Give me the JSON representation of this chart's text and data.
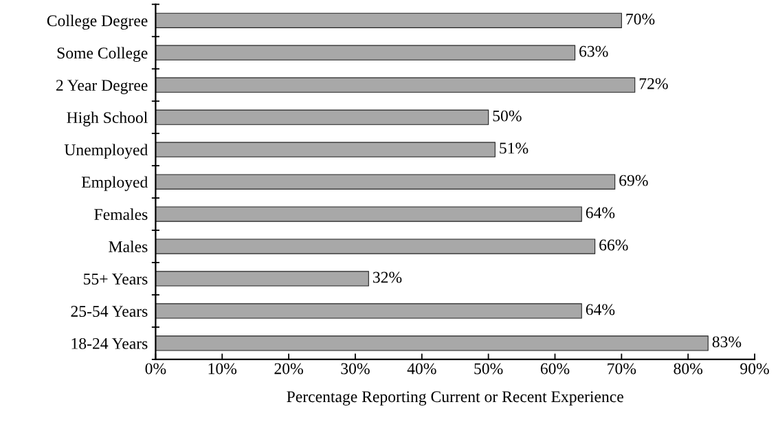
{
  "chart_data": {
    "type": "bar",
    "orientation": "horizontal",
    "categories": [
      "College Degree",
      "Some College",
      "2 Year Degree",
      "High School",
      "Unemployed",
      "Employed",
      "Females",
      "Males",
      "55+ Years",
      "25-54 Years",
      "18-24 Years"
    ],
    "values": [
      70,
      63,
      72,
      50,
      51,
      69,
      64,
      66,
      32,
      64,
      83
    ],
    "value_labels": [
      "70%",
      "63%",
      "72%",
      "50%",
      "51%",
      "69%",
      "64%",
      "66%",
      "32%",
      "64%",
      "83%"
    ],
    "color": "#a8a8a8",
    "xlabel": "Percentage Reporting Current or Recent Experience",
    "xlim": [
      0,
      90
    ],
    "xticks": [
      {
        "value": 0,
        "label": "0%"
      },
      {
        "value": 10,
        "label": "10%"
      },
      {
        "value": 20,
        "label": "20%"
      },
      {
        "value": 30,
        "label": "30%"
      },
      {
        "value": 40,
        "label": "40%"
      },
      {
        "value": 50,
        "label": "50%"
      },
      {
        "value": 60,
        "label": "60%"
      },
      {
        "value": 70,
        "label": "70%"
      },
      {
        "value": 80,
        "label": "80%"
      },
      {
        "value": 90,
        "label": "90%"
      }
    ],
    "grid": false,
    "legend": false
  }
}
